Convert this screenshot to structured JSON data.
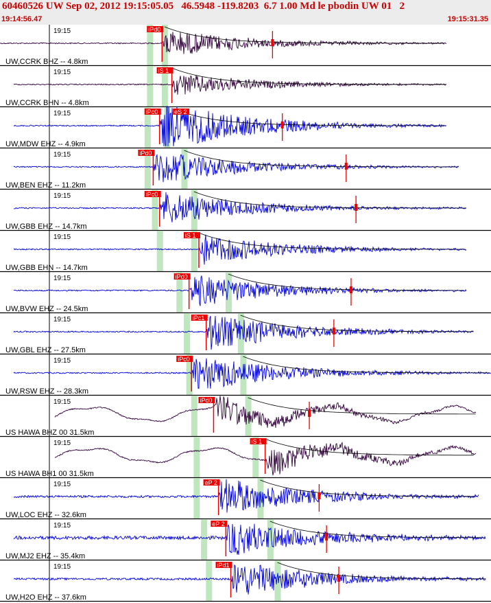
{
  "header": {
    "title": "60460526 UW Sep 02, 2012 19:15:05.05   46.5948 -119.8203  6.7 1.00 Md le pbodin UW 01   2",
    "start_time": "19:14:56.47",
    "end_time": "19:15:31.35"
  },
  "tick_label": "19:15",
  "colors": {
    "header_bg": "#ececec",
    "title": "#cc0000",
    "blue_trace": "#0000dd",
    "dark_trace": "#30003a",
    "pick": "#ee0000",
    "window": "#bfe6bf",
    "coda": "#000000"
  },
  "channels": [
    {
      "label": "UW,CCRK BHZ -- 4.8km",
      "pick": "iPd0",
      "color": "dark",
      "pick_t": 0.33,
      "wins": [
        0.305,
        0.335
      ],
      "s_t": 0.335,
      "amp_t": 0.555,
      "end_t": 0.91,
      "start_t": 0.0,
      "base_noise": 0.02,
      "env": 0.45,
      "lp": 0
    },
    {
      "label": "UW,CCRK BHN -- 4.8km",
      "pick": "iS 1",
      "color": "dark",
      "pick_t": 0.35,
      "wins": [
        0.305,
        0.335
      ],
      "s_t": 0.35,
      "amp_t": 0,
      "end_t": 0.91,
      "start_t": 0.0,
      "base_noise": 0.01,
      "env": 0.38,
      "lp": 0
    },
    {
      "label": "UW,MDW EHZ -- 4.9km",
      "pick": "iPc0",
      "pick2": "eS 2",
      "color": "blue",
      "pick_t": 0.325,
      "wins": [
        0.3,
        0.34
      ],
      "s_t": 0.355,
      "amp_t": 0.575,
      "end_t": 0.91,
      "start_t": 0.0,
      "base_noise": 0.02,
      "env": 0.85,
      "lp": 0
    },
    {
      "label": "UW,BEN EHZ -- 11.2km",
      "pick": "iPd0",
      "color": "blue",
      "pick_t": 0.312,
      "wins": [
        0.3,
        0.375
      ],
      "s_t": 0.375,
      "amp_t": 0.705,
      "end_t": 0.935,
      "start_t": 0.0,
      "base_noise": 0.02,
      "env": 0.55,
      "lp": 0
    },
    {
      "label": "UW,GBB EHZ -- 14.7km",
      "pick": "iPc0",
      "color": "blue",
      "pick_t": 0.325,
      "wins": [
        0.315,
        0.395
      ],
      "s_t": 0.395,
      "amp_t": 0.725,
      "end_t": 0.95,
      "start_t": 0.0,
      "base_noise": 0.03,
      "env": 0.55,
      "lp": 0
    },
    {
      "label": "UW,GBB EHN -- 14.7km",
      "pick": "iS 1",
      "color": "blue",
      "pick_t": 0.405,
      "wins": [
        0.325,
        0.395
      ],
      "s_t": 0.405,
      "amp_t": 0,
      "end_t": 0.95,
      "start_t": 0.0,
      "base_noise": 0.02,
      "env": 0.5,
      "lp": 0
    },
    {
      "label": "UW,BVW EHZ -- 24.5km",
      "pick": "iPd0",
      "color": "blue",
      "pick_t": 0.385,
      "wins": [
        0.365,
        0.465
      ],
      "s_t": 0.465,
      "amp_t": 0.715,
      "end_t": 0.95,
      "start_t": 0.0,
      "base_noise": 0.03,
      "env": 0.55,
      "lp": 0
    },
    {
      "label": "UW,GBL EHZ -- 27.5km",
      "pick": "iPc1",
      "color": "blue",
      "pick_t": 0.42,
      "wins": [
        0.38,
        0.49
      ],
      "s_t": 0.49,
      "amp_t": 0.68,
      "end_t": 0.965,
      "start_t": 0.0,
      "base_noise": 0.03,
      "env": 0.6,
      "lp": 0
    },
    {
      "label": "UW,RSW EHZ -- 28.3km",
      "pick": "iPc0",
      "color": "blue",
      "pick_t": 0.39,
      "wins": [
        0.385,
        0.495
      ],
      "s_t": 0.495,
      "amp_t": 0,
      "end_t": 1.0,
      "start_t": 0.0,
      "base_noise": 0.03,
      "env": 0.62,
      "lp": 0
    },
    {
      "label": "US HAWA BHZ 00 31.5km",
      "pick": "iPd0",
      "color": "dark",
      "pick_t": 0.435,
      "wins": [
        0.395,
        0.505
      ],
      "s_t": 0.505,
      "amp_t": 0.63,
      "end_t": 0.97,
      "start_t": 0.0,
      "base_noise": 0.02,
      "env": 0.45,
      "lp": 1
    },
    {
      "label": "US HAWA BH1 00 31.5km",
      "pick": "iS 1",
      "color": "dark",
      "pick_t": 0.54,
      "wins": [
        0.4,
        0.52
      ],
      "s_t": 0.54,
      "amp_t": 0,
      "end_t": 0.97,
      "start_t": 0.0,
      "base_noise": 0.02,
      "env": 0.45,
      "lp": 1
    },
    {
      "label": "UW,LOC EHZ -- 32.6km",
      "pick": "eP 2",
      "color": "blue",
      "pick_t": 0.445,
      "wins": [
        0.4,
        0.53
      ],
      "s_t": 0.53,
      "amp_t": 0.65,
      "end_t": 0.975,
      "start_t": 0.0,
      "base_noise": 0.12,
      "env": 0.6,
      "lp": 0
    },
    {
      "label": "UW,MJ2 EHZ -- 35.4km",
      "pick": "eP 2",
      "color": "blue",
      "pick_t": 0.46,
      "wins": [
        0.415,
        0.55
      ],
      "s_t": 0.55,
      "amp_t": 0.665,
      "end_t": 0.99,
      "start_t": 0.0,
      "base_noise": 0.25,
      "env": 0.6,
      "lp": 0
    },
    {
      "label": "UW,H2O EHZ -- 37.6km",
      "pick": "iPd1",
      "color": "blue",
      "pick_t": 0.47,
      "wins": [
        0.425,
        0.565
      ],
      "s_t": 0.565,
      "amp_t": 0.69,
      "end_t": 0.99,
      "start_t": 0.0,
      "base_noise": 0.1,
      "env": 0.6,
      "lp": 0
    }
  ]
}
